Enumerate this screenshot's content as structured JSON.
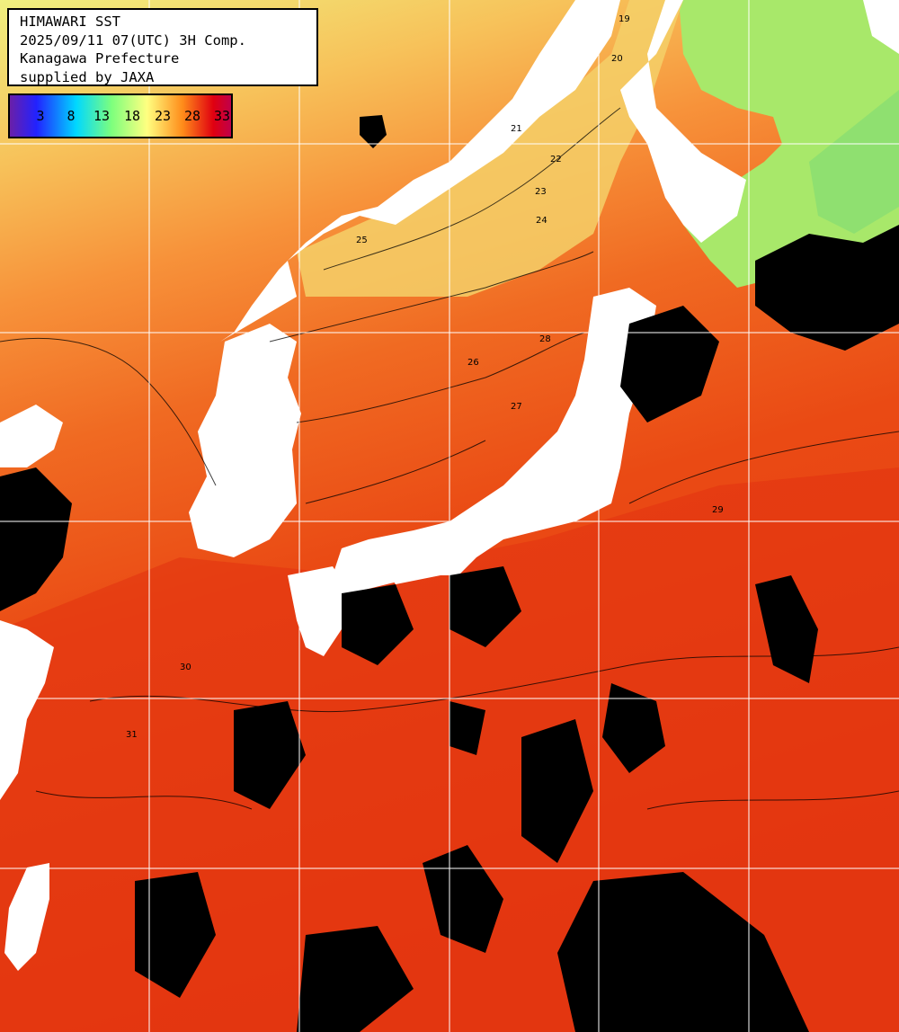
{
  "header": {
    "line1": "HIMAWARI SST",
    "line2": "2025/09/11 07(UTC) 3H Comp.",
    "line3": "Kanagawa Prefecture",
    "line4": "supplied by JAXA"
  },
  "legend": {
    "ticks": [
      "3",
      "8",
      "13",
      "18",
      "23",
      "28",
      "33"
    ],
    "colors": [
      "#6a1fa8",
      "#2222ff",
      "#00d8ff",
      "#7dff7d",
      "#ffff80",
      "#ff8c1a",
      "#e00010",
      "#c0004a"
    ]
  },
  "contour_labels": [
    "19",
    "20",
    "21",
    "22",
    "23",
    "24",
    "25",
    "26",
    "27",
    "28",
    "29",
    "30",
    "31"
  ],
  "colors": {
    "land": "#ffffff",
    "cloud": "#000000",
    "grid": "#ffffff"
  }
}
